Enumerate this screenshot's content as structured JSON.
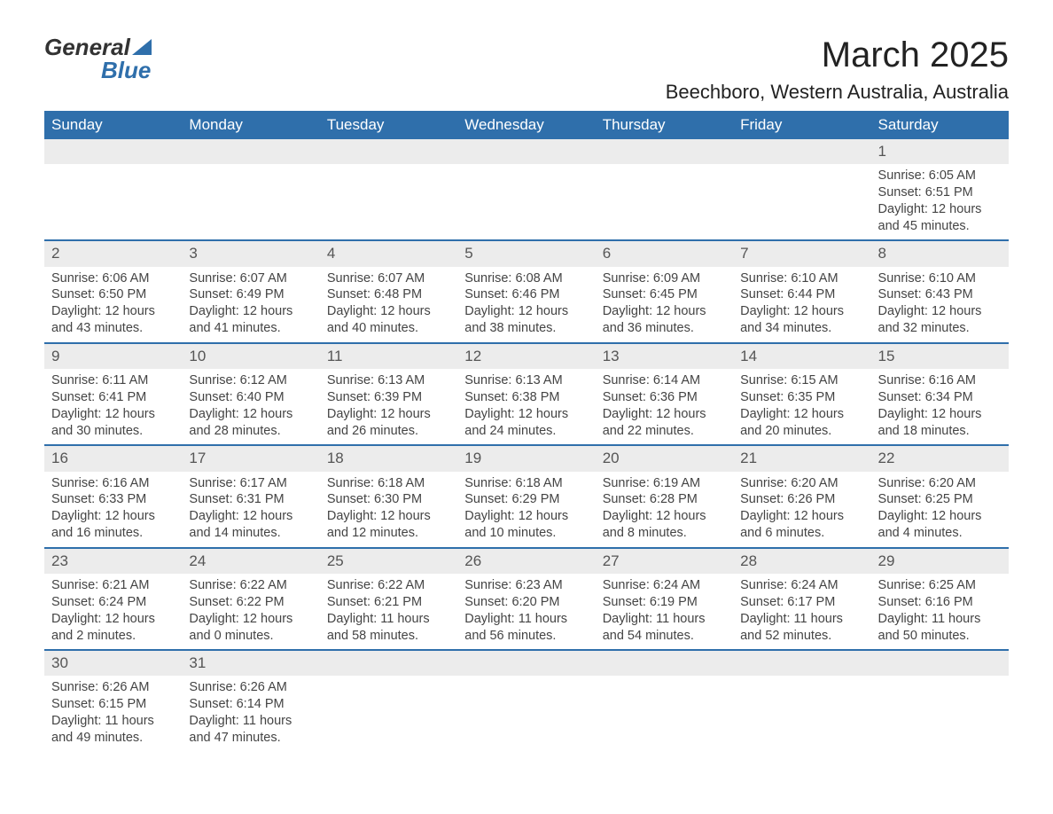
{
  "brand": {
    "line1": "General",
    "line2": "Blue"
  },
  "title": "March 2025",
  "location": "Beechboro, Western Australia, Australia",
  "colors": {
    "header_bg": "#2f6fab",
    "header_text": "#ffffff",
    "row_bg": "#ececec",
    "text": "#444444"
  },
  "day_headers": [
    "Sunday",
    "Monday",
    "Tuesday",
    "Wednesday",
    "Thursday",
    "Friday",
    "Saturday"
  ],
  "weeks": [
    [
      null,
      null,
      null,
      null,
      null,
      null,
      {
        "n": "1",
        "sunrise": "Sunrise: 6:05 AM",
        "sunset": "Sunset: 6:51 PM",
        "daylight": "Daylight: 12 hours and 45 minutes."
      }
    ],
    [
      {
        "n": "2",
        "sunrise": "Sunrise: 6:06 AM",
        "sunset": "Sunset: 6:50 PM",
        "daylight": "Daylight: 12 hours and 43 minutes."
      },
      {
        "n": "3",
        "sunrise": "Sunrise: 6:07 AM",
        "sunset": "Sunset: 6:49 PM",
        "daylight": "Daylight: 12 hours and 41 minutes."
      },
      {
        "n": "4",
        "sunrise": "Sunrise: 6:07 AM",
        "sunset": "Sunset: 6:48 PM",
        "daylight": "Daylight: 12 hours and 40 minutes."
      },
      {
        "n": "5",
        "sunrise": "Sunrise: 6:08 AM",
        "sunset": "Sunset: 6:46 PM",
        "daylight": "Daylight: 12 hours and 38 minutes."
      },
      {
        "n": "6",
        "sunrise": "Sunrise: 6:09 AM",
        "sunset": "Sunset: 6:45 PM",
        "daylight": "Daylight: 12 hours and 36 minutes."
      },
      {
        "n": "7",
        "sunrise": "Sunrise: 6:10 AM",
        "sunset": "Sunset: 6:44 PM",
        "daylight": "Daylight: 12 hours and 34 minutes."
      },
      {
        "n": "8",
        "sunrise": "Sunrise: 6:10 AM",
        "sunset": "Sunset: 6:43 PM",
        "daylight": "Daylight: 12 hours and 32 minutes."
      }
    ],
    [
      {
        "n": "9",
        "sunrise": "Sunrise: 6:11 AM",
        "sunset": "Sunset: 6:41 PM",
        "daylight": "Daylight: 12 hours and 30 minutes."
      },
      {
        "n": "10",
        "sunrise": "Sunrise: 6:12 AM",
        "sunset": "Sunset: 6:40 PM",
        "daylight": "Daylight: 12 hours and 28 minutes."
      },
      {
        "n": "11",
        "sunrise": "Sunrise: 6:13 AM",
        "sunset": "Sunset: 6:39 PM",
        "daylight": "Daylight: 12 hours and 26 minutes."
      },
      {
        "n": "12",
        "sunrise": "Sunrise: 6:13 AM",
        "sunset": "Sunset: 6:38 PM",
        "daylight": "Daylight: 12 hours and 24 minutes."
      },
      {
        "n": "13",
        "sunrise": "Sunrise: 6:14 AM",
        "sunset": "Sunset: 6:36 PM",
        "daylight": "Daylight: 12 hours and 22 minutes."
      },
      {
        "n": "14",
        "sunrise": "Sunrise: 6:15 AM",
        "sunset": "Sunset: 6:35 PM",
        "daylight": "Daylight: 12 hours and 20 minutes."
      },
      {
        "n": "15",
        "sunrise": "Sunrise: 6:16 AM",
        "sunset": "Sunset: 6:34 PM",
        "daylight": "Daylight: 12 hours and 18 minutes."
      }
    ],
    [
      {
        "n": "16",
        "sunrise": "Sunrise: 6:16 AM",
        "sunset": "Sunset: 6:33 PM",
        "daylight": "Daylight: 12 hours and 16 minutes."
      },
      {
        "n": "17",
        "sunrise": "Sunrise: 6:17 AM",
        "sunset": "Sunset: 6:31 PM",
        "daylight": "Daylight: 12 hours and 14 minutes."
      },
      {
        "n": "18",
        "sunrise": "Sunrise: 6:18 AM",
        "sunset": "Sunset: 6:30 PM",
        "daylight": "Daylight: 12 hours and 12 minutes."
      },
      {
        "n": "19",
        "sunrise": "Sunrise: 6:18 AM",
        "sunset": "Sunset: 6:29 PM",
        "daylight": "Daylight: 12 hours and 10 minutes."
      },
      {
        "n": "20",
        "sunrise": "Sunrise: 6:19 AM",
        "sunset": "Sunset: 6:28 PM",
        "daylight": "Daylight: 12 hours and 8 minutes."
      },
      {
        "n": "21",
        "sunrise": "Sunrise: 6:20 AM",
        "sunset": "Sunset: 6:26 PM",
        "daylight": "Daylight: 12 hours and 6 minutes."
      },
      {
        "n": "22",
        "sunrise": "Sunrise: 6:20 AM",
        "sunset": "Sunset: 6:25 PM",
        "daylight": "Daylight: 12 hours and 4 minutes."
      }
    ],
    [
      {
        "n": "23",
        "sunrise": "Sunrise: 6:21 AM",
        "sunset": "Sunset: 6:24 PM",
        "daylight": "Daylight: 12 hours and 2 minutes."
      },
      {
        "n": "24",
        "sunrise": "Sunrise: 6:22 AM",
        "sunset": "Sunset: 6:22 PM",
        "daylight": "Daylight: 12 hours and 0 minutes."
      },
      {
        "n": "25",
        "sunrise": "Sunrise: 6:22 AM",
        "sunset": "Sunset: 6:21 PM",
        "daylight": "Daylight: 11 hours and 58 minutes."
      },
      {
        "n": "26",
        "sunrise": "Sunrise: 6:23 AM",
        "sunset": "Sunset: 6:20 PM",
        "daylight": "Daylight: 11 hours and 56 minutes."
      },
      {
        "n": "27",
        "sunrise": "Sunrise: 6:24 AM",
        "sunset": "Sunset: 6:19 PM",
        "daylight": "Daylight: 11 hours and 54 minutes."
      },
      {
        "n": "28",
        "sunrise": "Sunrise: 6:24 AM",
        "sunset": "Sunset: 6:17 PM",
        "daylight": "Daylight: 11 hours and 52 minutes."
      },
      {
        "n": "29",
        "sunrise": "Sunrise: 6:25 AM",
        "sunset": "Sunset: 6:16 PM",
        "daylight": "Daylight: 11 hours and 50 minutes."
      }
    ],
    [
      {
        "n": "30",
        "sunrise": "Sunrise: 6:26 AM",
        "sunset": "Sunset: 6:15 PM",
        "daylight": "Daylight: 11 hours and 49 minutes."
      },
      {
        "n": "31",
        "sunrise": "Sunrise: 6:26 AM",
        "sunset": "Sunset: 6:14 PM",
        "daylight": "Daylight: 11 hours and 47 minutes."
      },
      null,
      null,
      null,
      null,
      null
    ]
  ]
}
